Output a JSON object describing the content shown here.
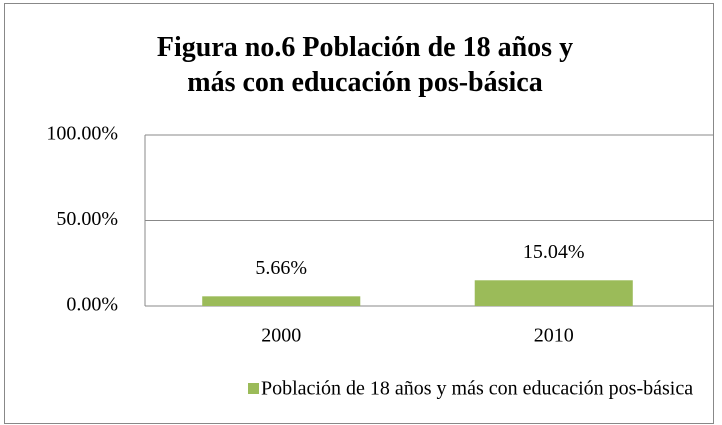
{
  "chart_data": {
    "type": "bar",
    "title": "Figura no.6 Población de 18 años y más con educación pos-básica",
    "categories": [
      "2000",
      "2010"
    ],
    "series": [
      {
        "name": "Población de 18 años y más con educación pos-básica",
        "color": "#9bbb59",
        "values": [
          5.66,
          15.04
        ],
        "value_labels": [
          "5.66%",
          "15.04%"
        ]
      }
    ],
    "ylim": [
      0,
      100
    ],
    "yticks": [
      {
        "value": 0,
        "label": "0.00%"
      },
      {
        "value": 50,
        "label": "50.00%"
      },
      {
        "value": 100,
        "label": "100.00%"
      }
    ],
    "grid": true,
    "legend": "bottom"
  }
}
